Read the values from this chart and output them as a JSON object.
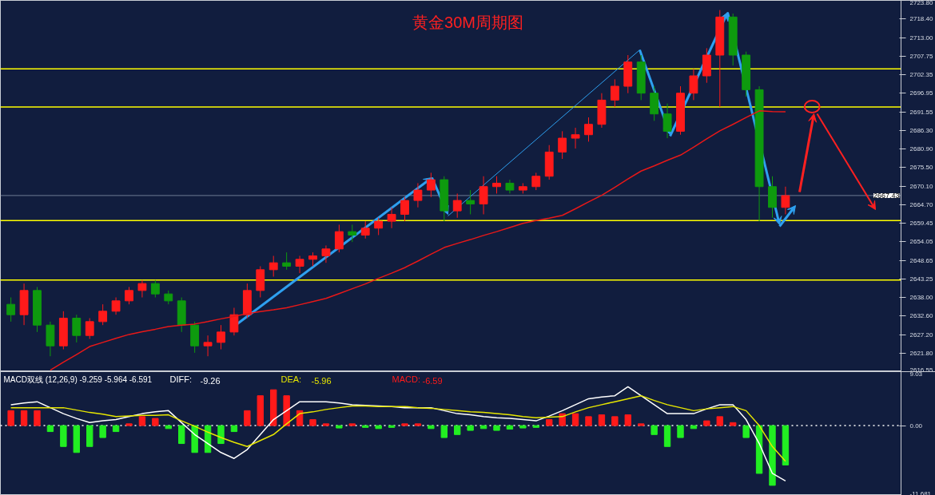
{
  "chart_data": [
    {
      "type": "candlestick",
      "title": "黄金30M周期图",
      "tick_labels": "y",
      "grid": false,
      "categories": [
        null,
        null,
        null,
        null,
        null,
        null,
        null,
        null,
        null,
        null,
        null,
        null,
        null,
        null,
        null,
        null,
        null,
        null,
        null,
        null,
        null,
        null,
        null,
        null,
        null,
        null,
        null,
        null,
        null,
        null,
        null,
        null,
        null,
        null,
        null,
        null,
        null,
        null,
        null,
        null,
        null,
        null,
        null,
        null,
        null,
        null,
        null,
        null,
        null,
        null,
        null,
        null,
        null,
        null,
        null,
        null,
        null,
        null,
        null,
        null
      ],
      "ylim": [
        2616.55,
        2723.8
      ],
      "yticks": [
        {
          "value": 2616.55,
          "label": "2616.55"
        },
        {
          "value": 2621.8,
          "label": "2621.80"
        },
        {
          "value": 2627.2,
          "label": "2627.20"
        },
        {
          "value": 2632.6,
          "label": "2632.60"
        },
        {
          "value": 2638.0,
          "label": "2638.00"
        },
        {
          "value": 2643.25,
          "label": "2643.25"
        },
        {
          "value": 2648.65,
          "label": "2648.65"
        },
        {
          "value": 2654.05,
          "label": "2654.05"
        },
        {
          "value": 2659.45,
          "label": "2659.45"
        },
        {
          "value": 2664.7,
          "label": "2664.70"
        },
        {
          "value": 2670.1,
          "label": "2670.10"
        },
        {
          "value": 2675.5,
          "label": "2675.50"
        },
        {
          "value": 2680.9,
          "label": "2680.90"
        },
        {
          "value": 2686.3,
          "label": "2686.30"
        },
        {
          "value": 2691.55,
          "label": "2691.55"
        },
        {
          "value": 2696.95,
          "label": "2696.95"
        },
        {
          "value": 2702.35,
          "label": "2702.35"
        },
        {
          "value": 2707.75,
          "label": "2707.75"
        },
        {
          "value": 2713.0,
          "label": "2713.00"
        },
        {
          "value": 2718.4,
          "label": "2718.40"
        },
        {
          "value": 2723.8,
          "label": "2723.80"
        }
      ],
      "ohlc": [
        [
          2636,
          2638,
          2631,
          2633
        ],
        [
          2633,
          2642,
          2630,
          2640
        ],
        [
          2640,
          2641,
          2628,
          2630
        ],
        [
          2630,
          2631,
          2621,
          2624
        ],
        [
          2624,
          2634,
          2623,
          2632
        ],
        [
          2632,
          2633,
          2625,
          2627
        ],
        [
          2627,
          2632,
          2626,
          2631
        ],
        [
          2631,
          2636,
          2630,
          2634
        ],
        [
          2634,
          2638,
          2633,
          2637
        ],
        [
          2637,
          2641,
          2636,
          2640
        ],
        [
          2640,
          2643,
          2638,
          2642
        ],
        [
          2642,
          2643,
          2638,
          2639
        ],
        [
          2639,
          2640,
          2636,
          2637
        ],
        [
          2637,
          2638,
          2628,
          2630
        ],
        [
          2630,
          2631,
          2622,
          2624
        ],
        [
          2624,
          2627,
          2621,
          2625
        ],
        [
          2625,
          2630,
          2623,
          2628
        ],
        [
          2628,
          2635,
          2627,
          2633
        ],
        [
          2633,
          2642,
          2632,
          2640
        ],
        [
          2640,
          2647,
          2638,
          2646
        ],
        [
          2646,
          2650,
          2644,
          2648
        ],
        [
          2648,
          2651,
          2646,
          2647
        ],
        [
          2647,
          2650,
          2645,
          2649
        ],
        [
          2649,
          2651,
          2647,
          2650
        ],
        [
          2650,
          2653,
          2648,
          2652
        ],
        [
          2652,
          2659,
          2651,
          2657
        ],
        [
          2657,
          2659,
          2654,
          2656
        ],
        [
          2656,
          2660,
          2655,
          2658
        ],
        [
          2658,
          2661,
          2656,
          2660
        ],
        [
          2660,
          2664,
          2658,
          2662
        ],
        [
          2662,
          2667,
          2660,
          2666
        ],
        [
          2666,
          2671,
          2664,
          2669
        ],
        [
          2669,
          2674,
          2667,
          2672
        ],
        [
          2672,
          2673,
          2660,
          2663
        ],
        [
          2663,
          2668,
          2661,
          2666
        ],
        [
          2666,
          2669,
          2662,
          2665
        ],
        [
          2665,
          2673,
          2662,
          2670
        ],
        [
          2670,
          2673,
          2668,
          2671
        ],
        [
          2671,
          2672,
          2668,
          2669
        ],
        [
          2669,
          2671,
          2668,
          2670
        ],
        [
          2670,
          2674,
          2669,
          2673
        ],
        [
          2673,
          2682,
          2672,
          2680
        ],
        [
          2680,
          2686,
          2678,
          2684
        ],
        [
          2684,
          2687,
          2681,
          2685
        ],
        [
          2685,
          2690,
          2683,
          2688
        ],
        [
          2688,
          2697,
          2687,
          2695
        ],
        [
          2695,
          2701,
          2693,
          2699
        ],
        [
          2699,
          2708,
          2697,
          2706
        ],
        [
          2706,
          2708,
          2695,
          2697
        ],
        [
          2697,
          2699,
          2689,
          2691
        ],
        [
          2691,
          2694,
          2684,
          2686
        ],
        [
          2686,
          2699,
          2685,
          2697
        ],
        [
          2697,
          2704,
          2695,
          2702
        ],
        [
          2702,
          2710,
          2700,
          2708
        ],
        [
          2708,
          2721,
          2693,
          2719
        ],
        [
          2719,
          2720,
          2705,
          2708
        ],
        [
          2708,
          2709,
          2696,
          2698
        ],
        [
          2698,
          2699,
          2660,
          2670
        ],
        [
          2670,
          2673,
          2661,
          2664
        ],
        [
          2664,
          2670,
          2662,
          2667.4
        ]
      ],
      "colors": [
        "#0e9a0e",
        "#ff1a1a",
        "#0e9a0e",
        "#0e9a0e",
        "#ff1a1a",
        "#0e9a0e",
        "#ff1a1a",
        "#ff1a1a",
        "#ff1a1a",
        "#ff1a1a",
        "#ff1a1a",
        "#0e9a0e",
        "#0e9a0e",
        "#0e9a0e",
        "#0e9a0e",
        "#ff1a1a",
        "#ff1a1a",
        "#ff1a1a",
        "#ff1a1a",
        "#ff1a1a",
        "#ff1a1a",
        "#0e9a0e",
        "#ff1a1a",
        "#ff1a1a",
        "#ff1a1a",
        "#ff1a1a",
        "#0e9a0e",
        "#ff1a1a",
        "#ff1a1a",
        "#ff1a1a",
        "#ff1a1a",
        "#ff1a1a",
        "#ff1a1a",
        "#0e9a0e",
        "#ff1a1a",
        "#0e9a0e",
        "#ff1a1a",
        "#ff1a1a",
        "#0e9a0e",
        "#ff1a1a",
        "#ff1a1a",
        "#ff1a1a",
        "#ff1a1a",
        "#ff1a1a",
        "#ff1a1a",
        "#ff1a1a",
        "#ff1a1a",
        "#ff1a1a",
        "#0e9a0e",
        "#0e9a0e",
        "#0e9a0e",
        "#ff1a1a",
        "#ff1a1a",
        "#ff1a1a",
        "#ff1a1a",
        "#0e9a0e",
        "#0e9a0e",
        "#0e9a0e",
        "#0e9a0e",
        "#ff1a1a"
      ],
      "ref_lines": [
        {
          "axis": "y",
          "value": 2667.43,
          "label": "2667.43",
          "color": "#6f7c94"
        },
        {
          "axis": "y",
          "value": 2643,
          "color": "#ffff00"
        },
        {
          "axis": "y",
          "value": 2660.2,
          "color": "#ffff00"
        },
        {
          "axis": "y",
          "value": 2693,
          "color": "#ffff00"
        },
        {
          "axis": "y",
          "value": 2704,
          "color": "#ffff00"
        }
      ],
      "series": [
        {
          "type": "line",
          "color": "#e81818",
          "values": [
            null,
            null,
            null,
            2617,
            2619.3,
            2621.5,
            2623.8,
            2625,
            2626.2,
            2627.3,
            2628.1,
            2628.8,
            2629.6,
            2630,
            2630.3,
            2631,
            2631.8,
            2632.5,
            2633.3,
            2633.9,
            2634.4,
            2635,
            2635.9,
            2636.8,
            2637.7,
            2639.1,
            2640.5,
            2641.9,
            2643.5,
            2645,
            2646.6,
            2648.5,
            2650.5,
            2652.4,
            2653.6,
            2654.7,
            2655.9,
            2657,
            2658.2,
            2659.4,
            2660.2,
            2660.9,
            2661.7,
            2663.6,
            2665.6,
            2667.5,
            2669.8,
            2672.2,
            2674.5,
            2676,
            2677.6,
            2679.1,
            2681.4,
            2683.8,
            2686.1,
            2688,
            2690,
            2691.9,
            2691.7,
            2691.6
          ]
        }
      ]
    },
    {
      "type": "bar",
      "title": "MACD双线 (12,26,9) -9.259 -5.964 -6.591",
      "tick_labels": "y",
      "grid": false,
      "legend": false,
      "categories": [
        null,
        null,
        null,
        null,
        null,
        null,
        null,
        null,
        null,
        null,
        null,
        null,
        null,
        null,
        null,
        null,
        null,
        null,
        null,
        null,
        null,
        null,
        null,
        null,
        null,
        null,
        null,
        null,
        null,
        null,
        null,
        null,
        null,
        null,
        null,
        null,
        null,
        null,
        null,
        null,
        null,
        null,
        null,
        null,
        null,
        null,
        null,
        null,
        null,
        null,
        null,
        null,
        null,
        null,
        null,
        null,
        null,
        null,
        null,
        null
      ],
      "ylim": [
        -11.681,
        9.03
      ],
      "yticks": [
        {
          "value": -11.681,
          "label": "-11.681"
        },
        {
          "value": 0,
          "label": "0.00"
        },
        {
          "value": 9.03,
          "label": "9.03"
        }
      ],
      "ref_lines": [
        {
          "axis": "y",
          "value": 0,
          "color": "#ffffff",
          "line_style": "dotted"
        }
      ],
      "annotations": [
        "-9.26",
        "-5.96",
        "-6.59"
      ],
      "series": [
        {
          "name": "DIFF:",
          "type": "line",
          "color": "#ffffff",
          "values": [
            3.5,
            3.8,
            4.0,
            3.0,
            2,
            1.2,
            0.5,
            0.8,
            1,
            1.5,
            2,
            2.3,
            2.5,
            0.5,
            -1.5,
            -3,
            -4.5,
            -5.5,
            -4,
            -1.5,
            1,
            2.5,
            4,
            4,
            4,
            3.8,
            3.5,
            3.4,
            3.3,
            3.2,
            3,
            3,
            3,
            2.5,
            2,
            1.8,
            1.5,
            1.3,
            1.2,
            1,
            0.8,
            1.6,
            2.5,
            3.5,
            4.5,
            4.8,
            5,
            6.5,
            5,
            3.5,
            2,
            2,
            2,
            2.8,
            3.5,
            3.5,
            1,
            -3,
            -8,
            -9.26
          ]
        },
        {
          "name": "DEA:",
          "type": "line",
          "color": "#e6e600",
          "values": [
            3,
            3,
            3,
            3,
            3,
            2.6,
            2.2,
            1.9,
            1.5,
            1.6,
            1.7,
            1.7,
            1.8,
            0.8,
            -0.1,
            -1.1,
            -2,
            -2.8,
            -3.5,
            -2.5,
            -1.5,
            0.3,
            2,
            2.3,
            2.7,
            3,
            3.3,
            3.3,
            3.2,
            3.2,
            3.2,
            3,
            2.9,
            2.7,
            2.5,
            2.3,
            2.2,
            2,
            1.8,
            1.5,
            1.3,
            1.4,
            1.5,
            2.3,
            3,
            3.5,
            4,
            4.5,
            5,
            4.2,
            3.5,
            3,
            2.5,
            2.8,
            3,
            3.2,
            2.5,
            0,
            -3.5,
            -5.96
          ]
        },
        {
          "name": "MACD:",
          "type": "bar",
          "color": "#ff1a1a",
          "values": [
            2.5,
            2.5,
            2.5,
            -1,
            -3.5,
            -4.5,
            -3.5,
            -2,
            -1,
            0.3,
            1.5,
            1.2,
            -0.5,
            -3,
            -4.5,
            -4.5,
            -3,
            -1,
            2.5,
            5,
            6,
            5,
            2.5,
            1,
            0.3,
            -0.4,
            0.3,
            -0.3,
            -0.5,
            -0.3,
            0.3,
            0.3,
            -0.5,
            -2,
            -1.5,
            -0.8,
            -0.5,
            -0.8,
            -0.6,
            -0.4,
            -0.3,
            1.0,
            2.0,
            2.0,
            1.5,
            1.8,
            1.5,
            1.8,
            0.3,
            -1.5,
            -3.5,
            -2,
            -0.5,
            0.8,
            1.5,
            0.5,
            -2,
            -8,
            -10,
            -6.59
          ],
          "colors": [
            "#ff1a1a",
            "#ff1a1a",
            "#ff1a1a",
            "#22ee22",
            "#22ee22",
            "#22ee22",
            "#22ee22",
            "#22ee22",
            "#22ee22",
            "#ff1a1a",
            "#ff1a1a",
            "#ff1a1a",
            "#22ee22",
            "#22ee22",
            "#22ee22",
            "#22ee22",
            "#22ee22",
            "#22ee22",
            "#ff1a1a",
            "#ff1a1a",
            "#ff1a1a",
            "#ff1a1a",
            "#ff1a1a",
            "#ff1a1a",
            "#ff1a1a",
            "#22ee22",
            "#ff1a1a",
            "#22ee22",
            "#22ee22",
            "#22ee22",
            "#ff1a1a",
            "#ff1a1a",
            "#22ee22",
            "#22ee22",
            "#22ee22",
            "#22ee22",
            "#22ee22",
            "#22ee22",
            "#22ee22",
            "#22ee22",
            "#22ee22",
            "#ff1a1a",
            "#ff1a1a",
            "#ff1a1a",
            "#ff1a1a",
            "#ff1a1a",
            "#ff1a1a",
            "#ff1a1a",
            "#ff1a1a",
            "#22ee22",
            "#22ee22",
            "#22ee22",
            "#22ee22",
            "#ff1a1a",
            "#ff1a1a",
            "#ff1a1a",
            "#22ee22",
            "#22ee22",
            "#22ee22",
            "#22ee22"
          ]
        }
      ]
    }
  ]
}
